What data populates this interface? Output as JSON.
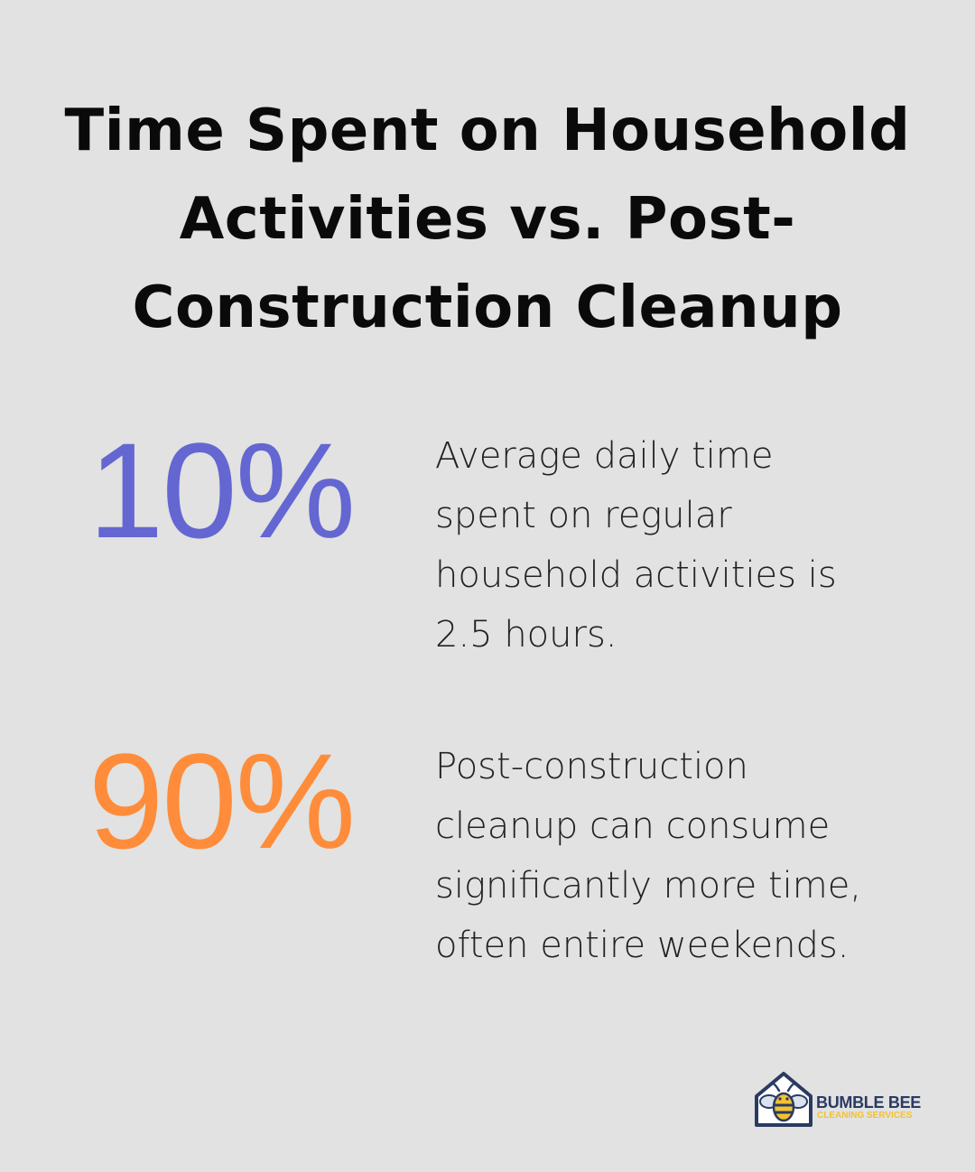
{
  "title": {
    "line1": "Time Spent on Household",
    "line2": "Activities vs. Post-",
    "line3": "Construction Cleanup"
  },
  "stats": [
    {
      "value": "10%",
      "color": "#6466d1",
      "lines": [
        "Average daily time",
        "spent on regular",
        "household activities is",
        "2.5 hours."
      ]
    },
    {
      "value": "90%",
      "color": "#ff8c3a",
      "lines": [
        "Post-construction",
        "cleanup can consume",
        "significantly more time,",
        "often entire weekends."
      ]
    }
  ],
  "logo": {
    "name": "BUMBLE BEE",
    "tagline": "CLEANING SERVICES",
    "icon": "bee-house-icon",
    "colors": {
      "navy": "#2b3a62",
      "yellow": "#f2c230"
    }
  }
}
